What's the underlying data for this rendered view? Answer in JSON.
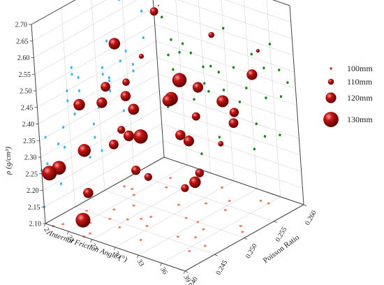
{
  "chart_data": {
    "type": "scatter",
    "x_axis": {
      "label": "Internal Friction Angle (°)",
      "ticks": [
        "21",
        "24",
        "27",
        "30",
        "33",
        "36",
        "39"
      ],
      "range": [
        21,
        39
      ]
    },
    "y_axis": {
      "label": "Poisson Ratio",
      "ticks": [
        "0.240",
        "0.245",
        "0.250",
        "0.255",
        "0.260"
      ],
      "range": [
        0.24,
        0.26
      ]
    },
    "z_axis": {
      "label": "ρ (g/cm³)",
      "ticks": [
        "2.10",
        "2.15",
        "2.20",
        "2.25",
        "2.30",
        "2.35",
        "2.40",
        "2.45",
        "2.50",
        "2.55",
        "2.60",
        "2.65",
        "2.70"
      ],
      "range": [
        2.1,
        2.7
      ]
    },
    "size_legend": {
      "entries": [
        {
          "label": "100mm",
          "value": 100
        },
        {
          "label": "110mm",
          "value": 110
        },
        {
          "label": "120mm",
          "value": 120
        },
        {
          "label": "130mm",
          "value": 130
        }
      ]
    },
    "projections": {
      "floor_color": "#f28070",
      "left_wall_color": "#40b8f0",
      "right_wall_color": "#1a8a1a"
    },
    "colors": {
      "bubble": "#b50f0f",
      "bubble_light": "#ff8a8a",
      "bubble_dark": "#5a0000",
      "grid": "#d4d4d4",
      "frame": "#444444"
    },
    "points": [
      {
        "phi": 24.5,
        "nu": 0.2565,
        "rho": 2.62,
        "size": 100
      },
      {
        "phi": 25.5,
        "nu": 0.2545,
        "rho": 2.63,
        "size": 115
      },
      {
        "phi": 22.0,
        "nu": 0.252,
        "rho": 2.53,
        "size": 122
      },
      {
        "phi": 30.0,
        "nu": 0.258,
        "rho": 2.56,
        "size": 110
      },
      {
        "phi": 24.5,
        "nu": 0.247,
        "rho": 2.47,
        "size": 118
      },
      {
        "phi": 24.0,
        "nu": 0.251,
        "rho": 2.44,
        "size": 113
      },
      {
        "phi": 25.5,
        "nu": 0.245,
        "rho": 2.45,
        "size": 120
      },
      {
        "phi": 27.0,
        "nu": 0.256,
        "rho": 2.42,
        "size": 128
      },
      {
        "phi": 22.5,
        "nu": 0.245,
        "rho": 2.42,
        "size": 122
      },
      {
        "phi": 23.0,
        "nu": 0.252,
        "rho": 2.38,
        "size": 119
      },
      {
        "phi": 26.0,
        "nu": 0.241,
        "rho": 2.35,
        "size": 125
      },
      {
        "phi": 25.5,
        "nu": 0.249,
        "rho": 2.31,
        "size": 120
      },
      {
        "phi": 27.5,
        "nu": 0.244,
        "rho": 2.35,
        "size": 118
      },
      {
        "phi": 27.0,
        "nu": 0.246,
        "rho": 2.37,
        "size": 114
      },
      {
        "phi": 28.0,
        "nu": 0.247,
        "rho": 2.43,
        "size": 121
      },
      {
        "phi": 29.0,
        "nu": 0.252,
        "rho": 2.42,
        "size": 126
      },
      {
        "phi": 29.5,
        "nu": 0.246,
        "rho": 2.37,
        "size": 128
      },
      {
        "phi": 31.0,
        "nu": 0.254,
        "rho": 2.45,
        "size": 120
      },
      {
        "phi": 32.5,
        "nu": 0.256,
        "rho": 2.4,
        "size": 123
      },
      {
        "phi": 31.5,
        "nu": 0.25,
        "rho": 2.35,
        "size": 119
      },
      {
        "phi": 31.0,
        "nu": 0.243,
        "rho": 2.31,
        "size": 117
      },
      {
        "phi": 35.0,
        "nu": 0.247,
        "rho": 2.39,
        "size": 120
      },
      {
        "phi": 37.0,
        "nu": 0.252,
        "rho": 2.41,
        "size": 118
      },
      {
        "phi": 36.5,
        "nu": 0.244,
        "rho": 2.29,
        "size": 114
      },
      {
        "phi": 22.0,
        "nu": 0.24,
        "rho": 2.26,
        "size": 129
      },
      {
        "phi": 22.5,
        "nu": 0.241,
        "rho": 2.27,
        "size": 127
      },
      {
        "phi": 24.5,
        "nu": 0.243,
        "rho": 2.19,
        "size": 119
      },
      {
        "phi": 26.0,
        "nu": 0.24,
        "rho": 2.15,
        "size": 129
      },
      {
        "phi": 28.5,
        "nu": 0.248,
        "rho": 2.22,
        "size": 114
      },
      {
        "phi": 33.0,
        "nu": 0.25,
        "rho": 2.22,
        "size": 122
      },
      {
        "phi": 33.5,
        "nu": 0.254,
        "rho": 2.3,
        "size": 109
      },
      {
        "phi": 34.5,
        "nu": 0.249,
        "rho": 2.27,
        "size": 116
      },
      {
        "phi": 35.0,
        "nu": 0.258,
        "rho": 2.48,
        "size": 120
      },
      {
        "phi": 33.5,
        "nu": 0.246,
        "rho": 2.51,
        "size": 123
      },
      {
        "phi": 37.0,
        "nu": 0.246,
        "rho": 2.49,
        "size": 115
      },
      {
        "phi": 38.0,
        "nu": 0.251,
        "rho": 2.46,
        "size": 117
      },
      {
        "phi": 23.0,
        "nu": 0.255,
        "rho": 2.47,
        "size": 108
      },
      {
        "phi": 36.0,
        "nu": 0.258,
        "rho": 2.56,
        "size": 105
      }
    ]
  }
}
